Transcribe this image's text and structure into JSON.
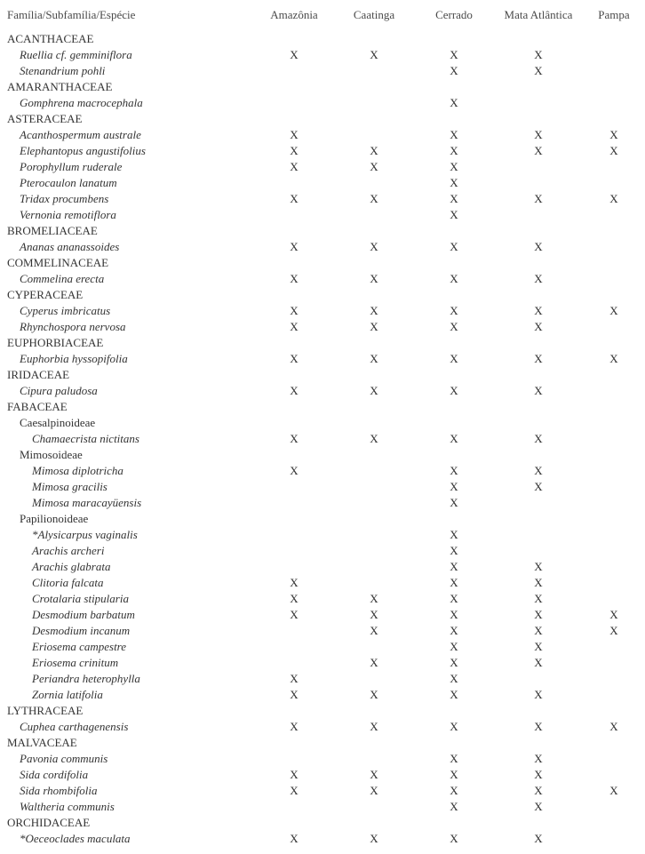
{
  "columns": [
    "Família/Subfamília/Espécie",
    "Amazônia",
    "Caatinga",
    "Cerrado",
    "Mata Atlântica",
    "Pampa"
  ],
  "column_widths": [
    "280px",
    "90px",
    "90px",
    "90px",
    "100px",
    "70px"
  ],
  "text_color": "#333333",
  "header_color": "#4a4a4a",
  "font_family": "Times New Roman",
  "font_size_pt": 10,
  "rows": [
    {
      "label": "ACANTHACEAE",
      "indent": 0,
      "italic": false,
      "marks": [
        "",
        "",
        "",
        "",
        ""
      ]
    },
    {
      "label": "Ruellia cf. gemminiflora",
      "indent": 1,
      "italic": true,
      "marks": [
        "X",
        "X",
        "X",
        "X",
        ""
      ]
    },
    {
      "label": "Stenandrium pohli",
      "indent": 1,
      "italic": true,
      "marks": [
        "",
        "",
        "X",
        "X",
        ""
      ]
    },
    {
      "label": "AMARANTHACEAE",
      "indent": 0,
      "italic": false,
      "marks": [
        "",
        "",
        "",
        "",
        ""
      ]
    },
    {
      "label": "Gomphrena  macrocephala",
      "indent": 1,
      "italic": true,
      "marks": [
        "",
        "",
        "X",
        "",
        ""
      ]
    },
    {
      "label": "ASTERACEAE",
      "indent": 0,
      "italic": false,
      "marks": [
        "",
        "",
        "",
        "",
        ""
      ]
    },
    {
      "label": "Acanthospermum australe",
      "indent": 1,
      "italic": true,
      "marks": [
        "X",
        "",
        "X",
        "X",
        "X"
      ]
    },
    {
      "label": "Elephantopus angustifolius",
      "indent": 1,
      "italic": true,
      "marks": [
        "X",
        "X",
        "X",
        "X",
        "X"
      ]
    },
    {
      "label": "Porophyllum ruderale",
      "indent": 1,
      "italic": true,
      "marks": [
        "X",
        "X",
        "X",
        "",
        ""
      ]
    },
    {
      "label": "Pterocaulon lanatum",
      "indent": 1,
      "italic": true,
      "marks": [
        "",
        "",
        "X",
        "",
        ""
      ]
    },
    {
      "label": "Tridax procumbens",
      "indent": 1,
      "italic": true,
      "marks": [
        "X",
        "X",
        "X",
        "X",
        "X"
      ]
    },
    {
      "label": "Vernonia remotiflora",
      "indent": 1,
      "italic": true,
      "marks": [
        "",
        "",
        "X",
        "",
        ""
      ]
    },
    {
      "label": "BROMELIACEAE",
      "indent": 0,
      "italic": false,
      "marks": [
        "",
        "",
        "",
        "",
        ""
      ]
    },
    {
      "label": "Ananas ananassoides",
      "indent": 1,
      "italic": true,
      "marks": [
        "X",
        "X",
        "X",
        "X",
        ""
      ]
    },
    {
      "label": "COMMELINACEAE",
      "indent": 0,
      "italic": false,
      "marks": [
        "",
        "",
        "",
        "",
        ""
      ]
    },
    {
      "label": "Commelina erecta",
      "indent": 1,
      "italic": true,
      "marks": [
        "X",
        "X",
        "X",
        "X",
        ""
      ]
    },
    {
      "label": "CYPERACEAE",
      "indent": 0,
      "italic": false,
      "marks": [
        "",
        "",
        "",
        "",
        ""
      ]
    },
    {
      "label": "Cyperus imbricatus",
      "indent": 1,
      "italic": true,
      "marks": [
        "X",
        "X",
        "X",
        "X",
        "X"
      ]
    },
    {
      "label": "Rhynchospora nervosa",
      "indent": 1,
      "italic": true,
      "marks": [
        "X",
        "X",
        "X",
        "X",
        ""
      ]
    },
    {
      "label": "EUPHORBIACEAE",
      "indent": 0,
      "italic": false,
      "marks": [
        "",
        "",
        "",
        "",
        ""
      ]
    },
    {
      "label": "Euphorbia hyssopifolia",
      "indent": 1,
      "italic": true,
      "marks": [
        "X",
        "X",
        "X",
        "X",
        "X"
      ]
    },
    {
      "label": "IRIDACEAE",
      "indent": 0,
      "italic": false,
      "marks": [
        "",
        "",
        "",
        "",
        ""
      ]
    },
    {
      "label": "Cipura paludosa",
      "indent": 1,
      "italic": true,
      "marks": [
        "X",
        "X",
        "X",
        "X",
        ""
      ]
    },
    {
      "label": "FABACEAE",
      "indent": 0,
      "italic": false,
      "marks": [
        "",
        "",
        "",
        "",
        ""
      ]
    },
    {
      "label": "Caesalpinoideae",
      "indent": 1,
      "italic": false,
      "marks": [
        "",
        "",
        "",
        "",
        ""
      ]
    },
    {
      "label": "Chamaecrista nictitans",
      "indent": 2,
      "italic": true,
      "marks": [
        "X",
        "X",
        "X",
        "X",
        ""
      ]
    },
    {
      "label": "Mimosoideae",
      "indent": 1,
      "italic": false,
      "marks": [
        "",
        "",
        "",
        "",
        ""
      ]
    },
    {
      "label": "Mimosa diplotricha",
      "indent": 2,
      "italic": true,
      "marks": [
        "X",
        "",
        "X",
        "X",
        ""
      ]
    },
    {
      "label": "Mimosa gracilis",
      "indent": 2,
      "italic": true,
      "marks": [
        "",
        "",
        "X",
        "X",
        ""
      ]
    },
    {
      "label": "Mimosa maracayüensis",
      "indent": 2,
      "italic": true,
      "marks": [
        "",
        "",
        "X",
        "",
        ""
      ]
    },
    {
      "label": "Papilionoideae",
      "indent": 1,
      "italic": false,
      "marks": [
        "",
        "",
        "",
        "",
        ""
      ]
    },
    {
      "label": "*Alysicarpus vaginalis",
      "indent": 2,
      "italic": true,
      "marks": [
        "",
        "",
        "X",
        "",
        ""
      ]
    },
    {
      "label": "Arachis archeri",
      "indent": 2,
      "italic": true,
      "marks": [
        "",
        "",
        "X",
        "",
        ""
      ]
    },
    {
      "label": "Arachis glabrata",
      "indent": 2,
      "italic": true,
      "marks": [
        "",
        "",
        "X",
        "X",
        ""
      ]
    },
    {
      "label": "Clitoria falcata",
      "indent": 2,
      "italic": true,
      "marks": [
        "X",
        "",
        "X",
        "X",
        ""
      ]
    },
    {
      "label": "Crotalaria stipularia",
      "indent": 2,
      "italic": true,
      "marks": [
        "X",
        "X",
        "X",
        "X",
        ""
      ]
    },
    {
      "label": "Desmodium barbatum",
      "indent": 2,
      "italic": true,
      "marks": [
        "X",
        "X",
        "X",
        "X",
        "X"
      ]
    },
    {
      "label": "Desmodium incanum",
      "indent": 2,
      "italic": true,
      "marks": [
        "",
        "X",
        "X",
        "X",
        "X"
      ]
    },
    {
      "label": "Eriosema campestre",
      "indent": 2,
      "italic": true,
      "marks": [
        "",
        "",
        "X",
        "X",
        ""
      ]
    },
    {
      "label": "Eriosema crinitum",
      "indent": 2,
      "italic": true,
      "marks": [
        "",
        "X",
        "X",
        "X",
        ""
      ]
    },
    {
      "label": "Periandra heterophylla",
      "indent": 2,
      "italic": true,
      "marks": [
        "X",
        "",
        "X",
        "",
        ""
      ]
    },
    {
      "label": "Zornia latifolia",
      "indent": 2,
      "italic": true,
      "marks": [
        "X",
        "X",
        "X",
        "X",
        ""
      ]
    },
    {
      "label": "LYTHRACEAE",
      "indent": 0,
      "italic": false,
      "marks": [
        "",
        "",
        "",
        "",
        ""
      ]
    },
    {
      "label": "Cuphea carthagenensis",
      "indent": 1,
      "italic": true,
      "marks": [
        "X",
        "X",
        "X",
        "X",
        "X"
      ]
    },
    {
      "label": "MALVACEAE",
      "indent": 0,
      "italic": false,
      "marks": [
        "",
        "",
        "",
        "",
        ""
      ]
    },
    {
      "label": "Pavonia communis",
      "indent": 1,
      "italic": true,
      "marks": [
        "",
        "",
        "X",
        "X",
        ""
      ]
    },
    {
      "label": "Sida cordifolia",
      "indent": 1,
      "italic": true,
      "marks": [
        "X",
        "X",
        "X",
        "X",
        ""
      ]
    },
    {
      "label": "Sida rhombifolia",
      "indent": 1,
      "italic": true,
      "marks": [
        "X",
        "X",
        "X",
        "X",
        "X"
      ]
    },
    {
      "label": "Waltheria communis",
      "indent": 1,
      "italic": true,
      "marks": [
        "",
        "",
        "X",
        "X",
        ""
      ]
    },
    {
      "label": "ORCHIDACEAE",
      "indent": 0,
      "italic": false,
      "marks": [
        "",
        "",
        "",
        "",
        ""
      ]
    },
    {
      "label": "*Oeceoclades maculata",
      "indent": 1,
      "italic": true,
      "marks": [
        "X",
        "X",
        "X",
        "X",
        ""
      ]
    }
  ]
}
